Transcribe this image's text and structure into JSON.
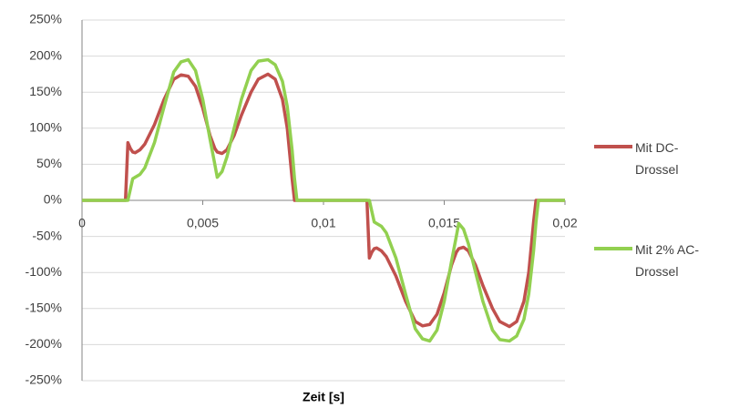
{
  "chart_data": {
    "type": "line",
    "x_label": "Zeit [s]",
    "x": [
      0,
      0.0018,
      0.0019,
      0.002,
      0.0021,
      0.0022,
      0.0024,
      0.0026,
      0.003,
      0.0034,
      0.0038,
      0.0041,
      0.0044,
      0.0047,
      0.005,
      0.0053,
      0.0055,
      0.0056,
      0.0058,
      0.006,
      0.0063,
      0.0066,
      0.007,
      0.0073,
      0.0077,
      0.008,
      0.0083,
      0.0085,
      0.0087,
      0.0088,
      0.0089,
      0.01,
      0.0118,
      0.0119,
      0.012,
      0.0121,
      0.0122,
      0.0124,
      0.0126,
      0.013,
      0.0134,
      0.0138,
      0.0141,
      0.0144,
      0.0147,
      0.015,
      0.0153,
      0.0155,
      0.0156,
      0.0158,
      0.016,
      0.0163,
      0.0166,
      0.017,
      0.0173,
      0.0177,
      0.018,
      0.0183,
      0.0185,
      0.0187,
      0.0188,
      0.0189,
      0.02
    ],
    "series": [
      {
        "name": "Mit DC-Drossel",
        "color": "#c0504d",
        "values": [
          0,
          0,
          80,
          72,
          67,
          66,
          70,
          78,
          105,
          140,
          168,
          174,
          172,
          158,
          128,
          90,
          72,
          67,
          65,
          70,
          90,
          118,
          150,
          168,
          175,
          168,
          140,
          100,
          30,
          0,
          0,
          0,
          0,
          -80,
          -72,
          -67,
          -66,
          -70,
          -78,
          -105,
          -140,
          -168,
          -174,
          -172,
          -158,
          -128,
          -90,
          -72,
          -67,
          -65,
          -70,
          -90,
          -118,
          -150,
          -168,
          -175,
          -168,
          -140,
          -100,
          -30,
          0,
          0,
          0
        ]
      },
      {
        "name": "Mit 2% AC-Drossel",
        "color": "#92d050",
        "values": [
          0,
          0,
          0,
          15,
          30,
          32,
          36,
          45,
          80,
          130,
          178,
          192,
          195,
          180,
          140,
          85,
          50,
          32,
          40,
          60,
          100,
          140,
          180,
          193,
          195,
          188,
          165,
          130,
          70,
          30,
          0,
          0,
          0,
          0,
          -15,
          -30,
          -32,
          -36,
          -45,
          -80,
          -130,
          -178,
          -192,
          -195,
          -180,
          -140,
          -85,
          -50,
          -32,
          -40,
          -60,
          -100,
          -140,
          -180,
          -193,
          -195,
          -188,
          -165,
          -130,
          -70,
          -30,
          0,
          0
        ]
      }
    ],
    "xlim": [
      0,
      0.02
    ],
    "xticks": [
      0,
      {
        "value": 0.005,
        "label": "0,005"
      },
      {
        "value": 0.01,
        "label": "0,01"
      },
      {
        "value": 0.015,
        "label": "0,015"
      },
      {
        "value": 0.02,
        "label": "0,02"
      }
    ],
    "ylim": [
      -250,
      250
    ],
    "yticks": [
      {
        "value": -250,
        "label": "-250%"
      },
      {
        "value": -200,
        "label": "-200%"
      },
      {
        "value": -150,
        "label": "-150%"
      },
      {
        "value": -100,
        "label": "-100%"
      },
      {
        "value": -50,
        "label": "-50%"
      },
      {
        "value": 0,
        "label": "0%"
      },
      {
        "value": 50,
        "label": "50%"
      },
      {
        "value": 100,
        "label": "100%"
      },
      {
        "value": 150,
        "label": "150%"
      },
      {
        "value": 200,
        "label": "200%"
      },
      {
        "value": 250,
        "label": "250%"
      }
    ],
    "grid": true,
    "legend": "right"
  }
}
